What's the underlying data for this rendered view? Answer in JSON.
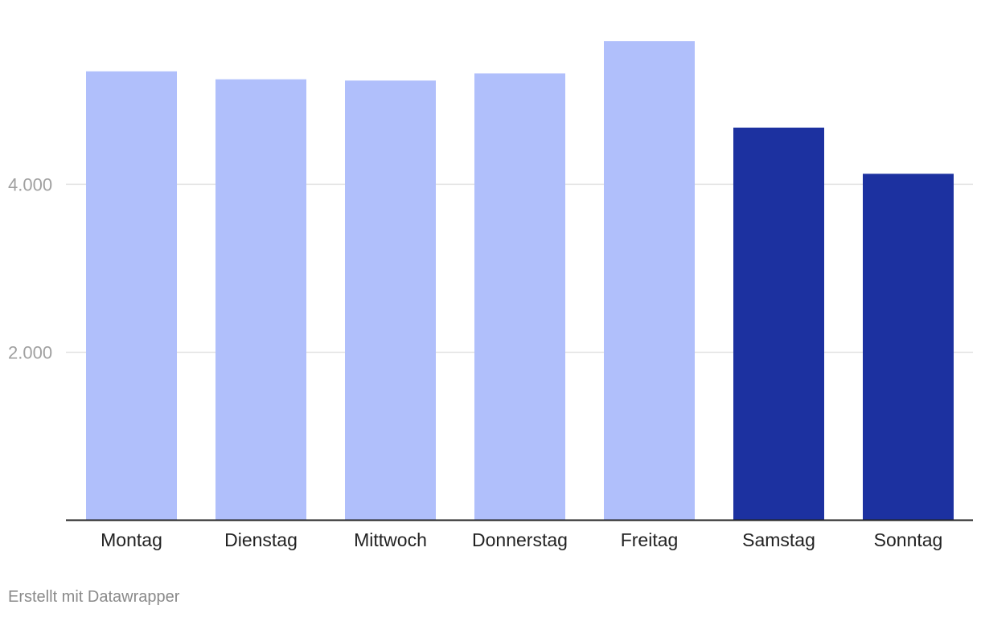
{
  "chart_data": {
    "type": "bar",
    "categories": [
      "Montag",
      "Dienstag",
      "Mittwoch",
      "Donnerstag",
      "Freitag",
      "Samstag",
      "Sonntag"
    ],
    "values": [
      5345,
      5250,
      5235,
      5320,
      5705,
      4675,
      4125
    ],
    "highlight": [
      false,
      false,
      false,
      false,
      false,
      true,
      true
    ],
    "colors": {
      "weekday": "#b0bffb",
      "weekend": "#1c31a0"
    },
    "ylim": [
      0,
      5740
    ],
    "yticks": [
      {
        "value": 2000,
        "label": "2.000"
      },
      {
        "value": 4000,
        "label": "4.000"
      }
    ],
    "grid": true,
    "title": "",
    "xlabel": "",
    "ylabel": ""
  },
  "footer": {
    "credit": "Erstellt mit Datawrapper"
  }
}
